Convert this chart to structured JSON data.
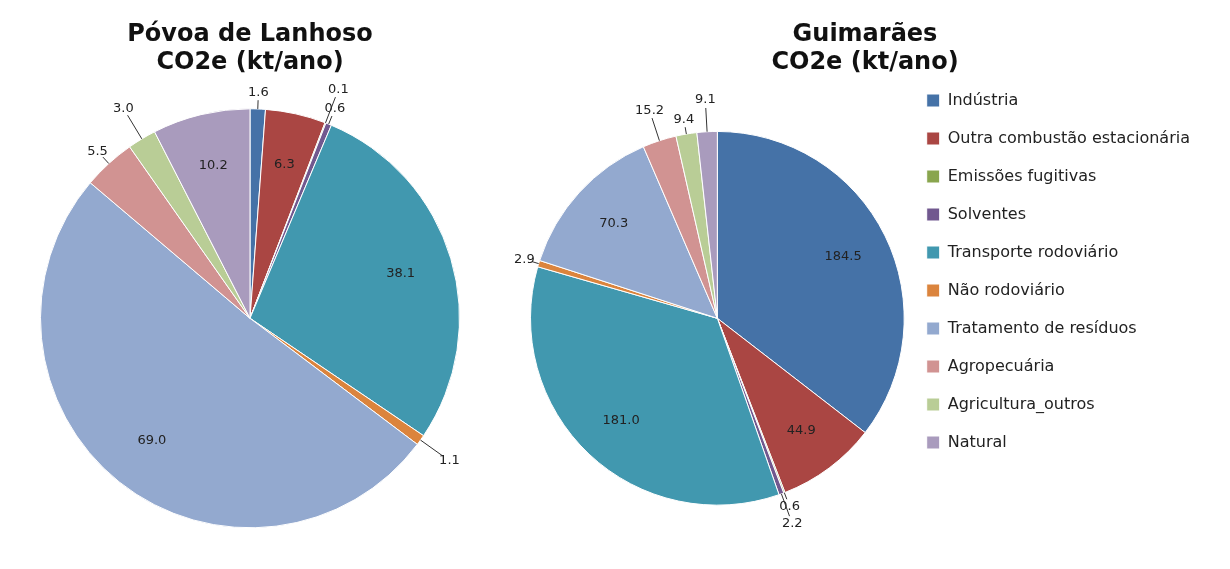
{
  "chart_data": [
    {
      "type": "pie",
      "title": "Póvoa de Lanhoso\nCO2e (kt/ano)",
      "categories": [
        null,
        null,
        null,
        null,
        null,
        null,
        null,
        null,
        null,
        null
      ],
      "values": [
        1.6,
        6.3,
        0.1,
        0.6,
        38.1,
        1.1,
        69.0,
        5.5,
        3.0,
        10.2
      ],
      "value_labels": [
        "1.6",
        "6.3",
        "0.1",
        "0.6",
        "38.1",
        "1.1",
        "69.0",
        "5.5",
        "3.0",
        "10.2"
      ],
      "colors": [
        "#4572a7",
        "#aa4643",
        "#89a54e",
        "#71588f",
        "#4198af",
        "#db843d",
        "#93a9cf",
        "#d19392",
        "#b9cd96",
        "#a99bbd"
      ]
    },
    {
      "type": "pie",
      "title": "Guimarães\nCO2e (kt/ano)",
      "categories": [
        "Indústria",
        "Outra combustão estacionária",
        "Emissões fugitivas",
        "Solventes",
        "Transporte rodoviário",
        "Não rodoviário",
        "Tratamento de resíduos",
        "Agropecuária",
        "Agricultura_outros",
        "Natural"
      ],
      "values": [
        184.5,
        44.9,
        0.6,
        2.2,
        181.0,
        2.9,
        70.3,
        15.2,
        9.4,
        9.1
      ],
      "value_labels": [
        "184.5",
        "44.9",
        "0.6",
        "2.2",
        "181.0",
        "2.9",
        "70.3",
        "15.2",
        "9.4",
        "9.1"
      ],
      "colors": [
        "#4572a7",
        "#aa4643",
        "#89a54e",
        "#71588f",
        "#4198af",
        "#db843d",
        "#93a9cf",
        "#d19392",
        "#b9cd96",
        "#a99bbd"
      ],
      "legend": "right"
    }
  ]
}
